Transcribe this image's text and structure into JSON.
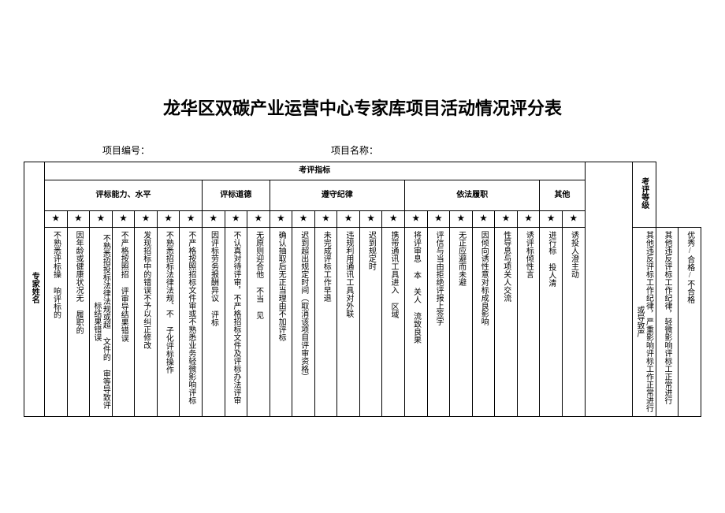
{
  "title": "龙华区双碳产业运营中心专家库项目活动情况评分表",
  "meta": {
    "project_no_label": "项目编号：",
    "project_name_label": "项目名称："
  },
  "headers": {
    "indicator": "考评指标",
    "groups": [
      "评标能力、水平",
      "评标道德",
      "遵守纪律",
      "依法履职",
      "其他"
    ],
    "expert_name": "专家姓名",
    "grade": "考评等级"
  },
  "stars": [
    "★",
    "★",
    "★",
    "★",
    "★",
    "★",
    "★",
    "★",
    "★",
    "★",
    "★",
    "★",
    "★",
    "★",
    "★",
    "★",
    "★",
    "★",
    "★",
    "★",
    "★",
    "★",
    "★",
    "★"
  ],
  "criteria": [
    "不熟悉评标操\\n\\n响评标的",
    "因年龄或健康状况无\\n\\n履职的",
    "不熟悉招投标法律法规或超\\n文件的\\n\\n审等导致评标结果错误",
    "不严格按照招\\n\\n评审导结果错误",
    "发现招标中的错误不予以纠正修改",
    "不熟悉招标法律法规、不\\n\\n子化评标操作",
    "不严格按照招标文件审或不熟悉业务轻微影响评标",
    "因评标劳务报酬异议\\n评标",
    "不认真对待评审，不严格招标文件及评标办法评审",
    "无原则迎合他\\n不当\\n见",
    "确认抽取后无正当理由不加评标",
    "迟到超出规定时间（取消该项目评审资格）",
    "未完成评标工作早退",
    "违规利用通讯工具对外联",
    "迟到规定时",
    "携带通讯工具进入\\n\\n区域",
    "将评审息\\n本\\n关人\\n\\n流致良果",
    "评信与当由拒绝评报上签字",
    "无正应避而未避",
    "因倾向诱性意对标成良影响",
    "性导息与项关人交流",
    "诱评标倾性言",
    "进行标\\n\\n投人清",
    "诱投人澄主动\\n",
    "其他违反评标工作纪律，严重影响评标工作正常进行或导致严",
    "其他违反评标工作纪律，轻微影响评标工正常进行",
    "优秀/合格/不合格"
  ]
}
